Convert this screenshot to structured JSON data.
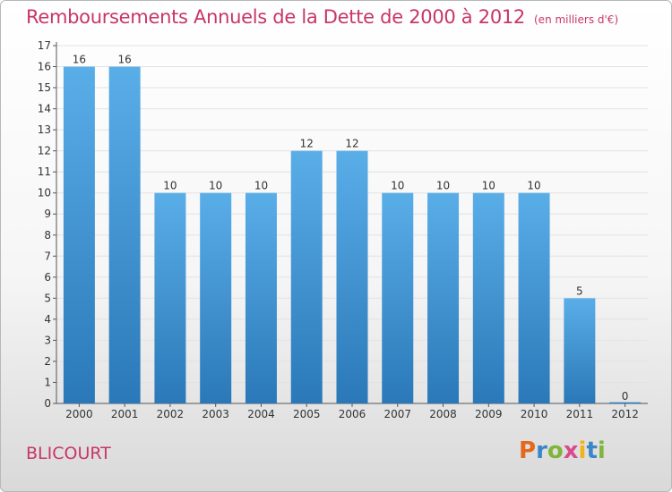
{
  "title": "Remboursements Annuels de la Dette de 2000 à 2012",
  "subtitle": "(en milliers d'€)",
  "commune": "BLICOURT",
  "logo": "Proxiti",
  "colors": {
    "title": "#c8356a",
    "bar_top": "#5aaee8",
    "bar_bottom": "#2a78b8"
  },
  "chart_data": {
    "type": "bar",
    "categories": [
      "2000",
      "2001",
      "2002",
      "2003",
      "2004",
      "2005",
      "2006",
      "2007",
      "2008",
      "2009",
      "2010",
      "2011",
      "2012"
    ],
    "values": [
      16,
      16,
      10,
      10,
      10,
      12,
      12,
      10,
      10,
      10,
      10,
      5,
      0
    ],
    "ylim": [
      0,
      17
    ],
    "yticks": [
      0,
      1,
      2,
      3,
      4,
      5,
      6,
      7,
      8,
      9,
      10,
      11,
      12,
      13,
      14,
      15,
      16,
      17
    ],
    "grid": true,
    "xlabel": "",
    "ylabel": ""
  }
}
